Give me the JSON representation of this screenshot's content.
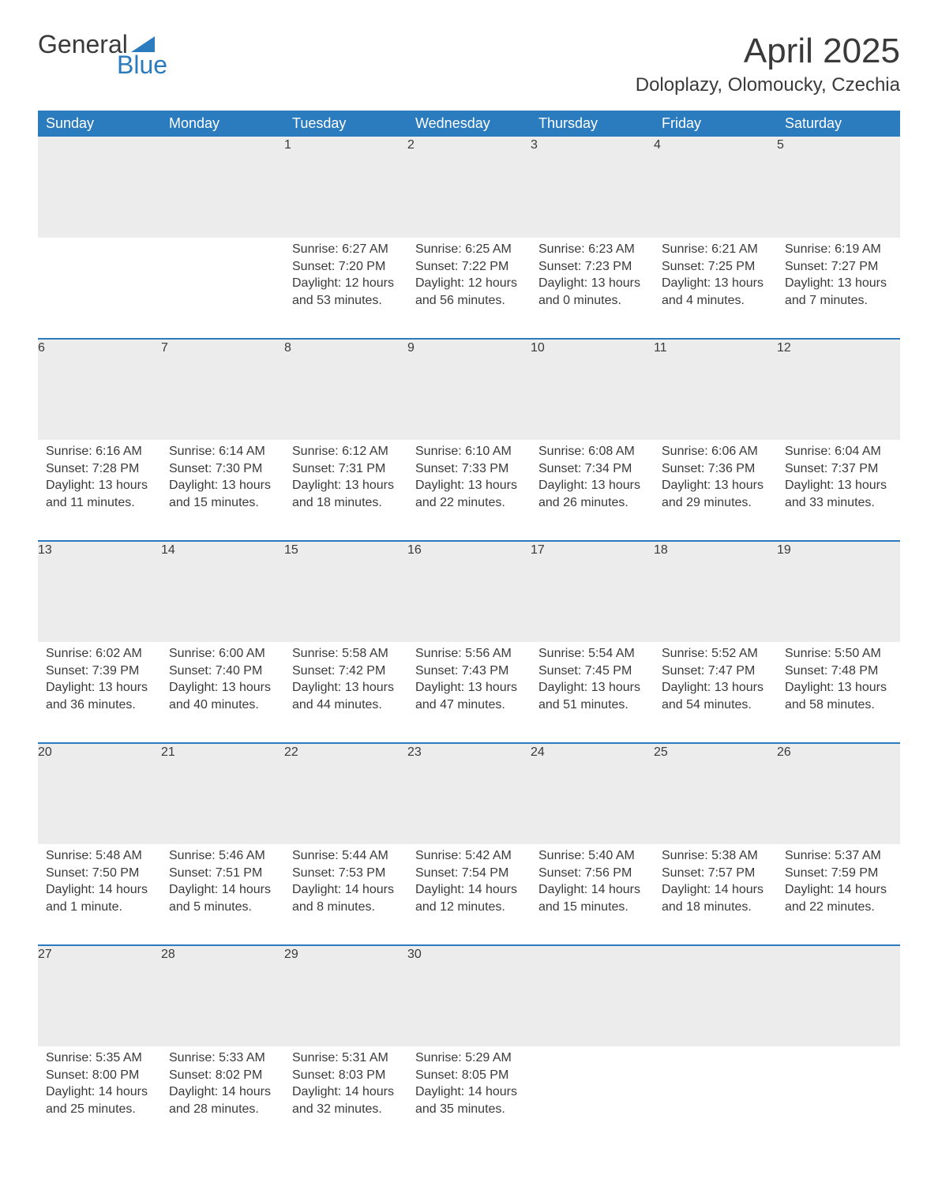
{
  "logo": {
    "text_general": "General",
    "text_blue": "Blue",
    "triangle_color": "#2b7bbf"
  },
  "title": "April 2025",
  "location": "Doloplazy, Olomoucky, Czechia",
  "colors": {
    "header_bg": "#2b7bbf",
    "header_text": "#ffffff",
    "daynum_bg": "#ececec",
    "row_border": "#2b7bbf",
    "text": "#3a3a3a"
  },
  "weekdays": [
    "Sunday",
    "Monday",
    "Tuesday",
    "Wednesday",
    "Thursday",
    "Friday",
    "Saturday"
  ],
  "weeks": [
    [
      null,
      null,
      {
        "n": "1",
        "sunrise": "Sunrise: 6:27 AM",
        "sunset": "Sunset: 7:20 PM",
        "day1": "Daylight: 12 hours",
        "day2": "and 53 minutes."
      },
      {
        "n": "2",
        "sunrise": "Sunrise: 6:25 AM",
        "sunset": "Sunset: 7:22 PM",
        "day1": "Daylight: 12 hours",
        "day2": "and 56 minutes."
      },
      {
        "n": "3",
        "sunrise": "Sunrise: 6:23 AM",
        "sunset": "Sunset: 7:23 PM",
        "day1": "Daylight: 13 hours",
        "day2": "and 0 minutes."
      },
      {
        "n": "4",
        "sunrise": "Sunrise: 6:21 AM",
        "sunset": "Sunset: 7:25 PM",
        "day1": "Daylight: 13 hours",
        "day2": "and 4 minutes."
      },
      {
        "n": "5",
        "sunrise": "Sunrise: 6:19 AM",
        "sunset": "Sunset: 7:27 PM",
        "day1": "Daylight: 13 hours",
        "day2": "and 7 minutes."
      }
    ],
    [
      {
        "n": "6",
        "sunrise": "Sunrise: 6:16 AM",
        "sunset": "Sunset: 7:28 PM",
        "day1": "Daylight: 13 hours",
        "day2": "and 11 minutes."
      },
      {
        "n": "7",
        "sunrise": "Sunrise: 6:14 AM",
        "sunset": "Sunset: 7:30 PM",
        "day1": "Daylight: 13 hours",
        "day2": "and 15 minutes."
      },
      {
        "n": "8",
        "sunrise": "Sunrise: 6:12 AM",
        "sunset": "Sunset: 7:31 PM",
        "day1": "Daylight: 13 hours",
        "day2": "and 18 minutes."
      },
      {
        "n": "9",
        "sunrise": "Sunrise: 6:10 AM",
        "sunset": "Sunset: 7:33 PM",
        "day1": "Daylight: 13 hours",
        "day2": "and 22 minutes."
      },
      {
        "n": "10",
        "sunrise": "Sunrise: 6:08 AM",
        "sunset": "Sunset: 7:34 PM",
        "day1": "Daylight: 13 hours",
        "day2": "and 26 minutes."
      },
      {
        "n": "11",
        "sunrise": "Sunrise: 6:06 AM",
        "sunset": "Sunset: 7:36 PM",
        "day1": "Daylight: 13 hours",
        "day2": "and 29 minutes."
      },
      {
        "n": "12",
        "sunrise": "Sunrise: 6:04 AM",
        "sunset": "Sunset: 7:37 PM",
        "day1": "Daylight: 13 hours",
        "day2": "and 33 minutes."
      }
    ],
    [
      {
        "n": "13",
        "sunrise": "Sunrise: 6:02 AM",
        "sunset": "Sunset: 7:39 PM",
        "day1": "Daylight: 13 hours",
        "day2": "and 36 minutes."
      },
      {
        "n": "14",
        "sunrise": "Sunrise: 6:00 AM",
        "sunset": "Sunset: 7:40 PM",
        "day1": "Daylight: 13 hours",
        "day2": "and 40 minutes."
      },
      {
        "n": "15",
        "sunrise": "Sunrise: 5:58 AM",
        "sunset": "Sunset: 7:42 PM",
        "day1": "Daylight: 13 hours",
        "day2": "and 44 minutes."
      },
      {
        "n": "16",
        "sunrise": "Sunrise: 5:56 AM",
        "sunset": "Sunset: 7:43 PM",
        "day1": "Daylight: 13 hours",
        "day2": "and 47 minutes."
      },
      {
        "n": "17",
        "sunrise": "Sunrise: 5:54 AM",
        "sunset": "Sunset: 7:45 PM",
        "day1": "Daylight: 13 hours",
        "day2": "and 51 minutes."
      },
      {
        "n": "18",
        "sunrise": "Sunrise: 5:52 AM",
        "sunset": "Sunset: 7:47 PM",
        "day1": "Daylight: 13 hours",
        "day2": "and 54 minutes."
      },
      {
        "n": "19",
        "sunrise": "Sunrise: 5:50 AM",
        "sunset": "Sunset: 7:48 PM",
        "day1": "Daylight: 13 hours",
        "day2": "and 58 minutes."
      }
    ],
    [
      {
        "n": "20",
        "sunrise": "Sunrise: 5:48 AM",
        "sunset": "Sunset: 7:50 PM",
        "day1": "Daylight: 14 hours",
        "day2": "and 1 minute."
      },
      {
        "n": "21",
        "sunrise": "Sunrise: 5:46 AM",
        "sunset": "Sunset: 7:51 PM",
        "day1": "Daylight: 14 hours",
        "day2": "and 5 minutes."
      },
      {
        "n": "22",
        "sunrise": "Sunrise: 5:44 AM",
        "sunset": "Sunset: 7:53 PM",
        "day1": "Daylight: 14 hours",
        "day2": "and 8 minutes."
      },
      {
        "n": "23",
        "sunrise": "Sunrise: 5:42 AM",
        "sunset": "Sunset: 7:54 PM",
        "day1": "Daylight: 14 hours",
        "day2": "and 12 minutes."
      },
      {
        "n": "24",
        "sunrise": "Sunrise: 5:40 AM",
        "sunset": "Sunset: 7:56 PM",
        "day1": "Daylight: 14 hours",
        "day2": "and 15 minutes."
      },
      {
        "n": "25",
        "sunrise": "Sunrise: 5:38 AM",
        "sunset": "Sunset: 7:57 PM",
        "day1": "Daylight: 14 hours",
        "day2": "and 18 minutes."
      },
      {
        "n": "26",
        "sunrise": "Sunrise: 5:37 AM",
        "sunset": "Sunset: 7:59 PM",
        "day1": "Daylight: 14 hours",
        "day2": "and 22 minutes."
      }
    ],
    [
      {
        "n": "27",
        "sunrise": "Sunrise: 5:35 AM",
        "sunset": "Sunset: 8:00 PM",
        "day1": "Daylight: 14 hours",
        "day2": "and 25 minutes."
      },
      {
        "n": "28",
        "sunrise": "Sunrise: 5:33 AM",
        "sunset": "Sunset: 8:02 PM",
        "day1": "Daylight: 14 hours",
        "day2": "and 28 minutes."
      },
      {
        "n": "29",
        "sunrise": "Sunrise: 5:31 AM",
        "sunset": "Sunset: 8:03 PM",
        "day1": "Daylight: 14 hours",
        "day2": "and 32 minutes."
      },
      {
        "n": "30",
        "sunrise": "Sunrise: 5:29 AM",
        "sunset": "Sunset: 8:05 PM",
        "day1": "Daylight: 14 hours",
        "day2": "and 35 minutes."
      },
      null,
      null,
      null
    ]
  ]
}
